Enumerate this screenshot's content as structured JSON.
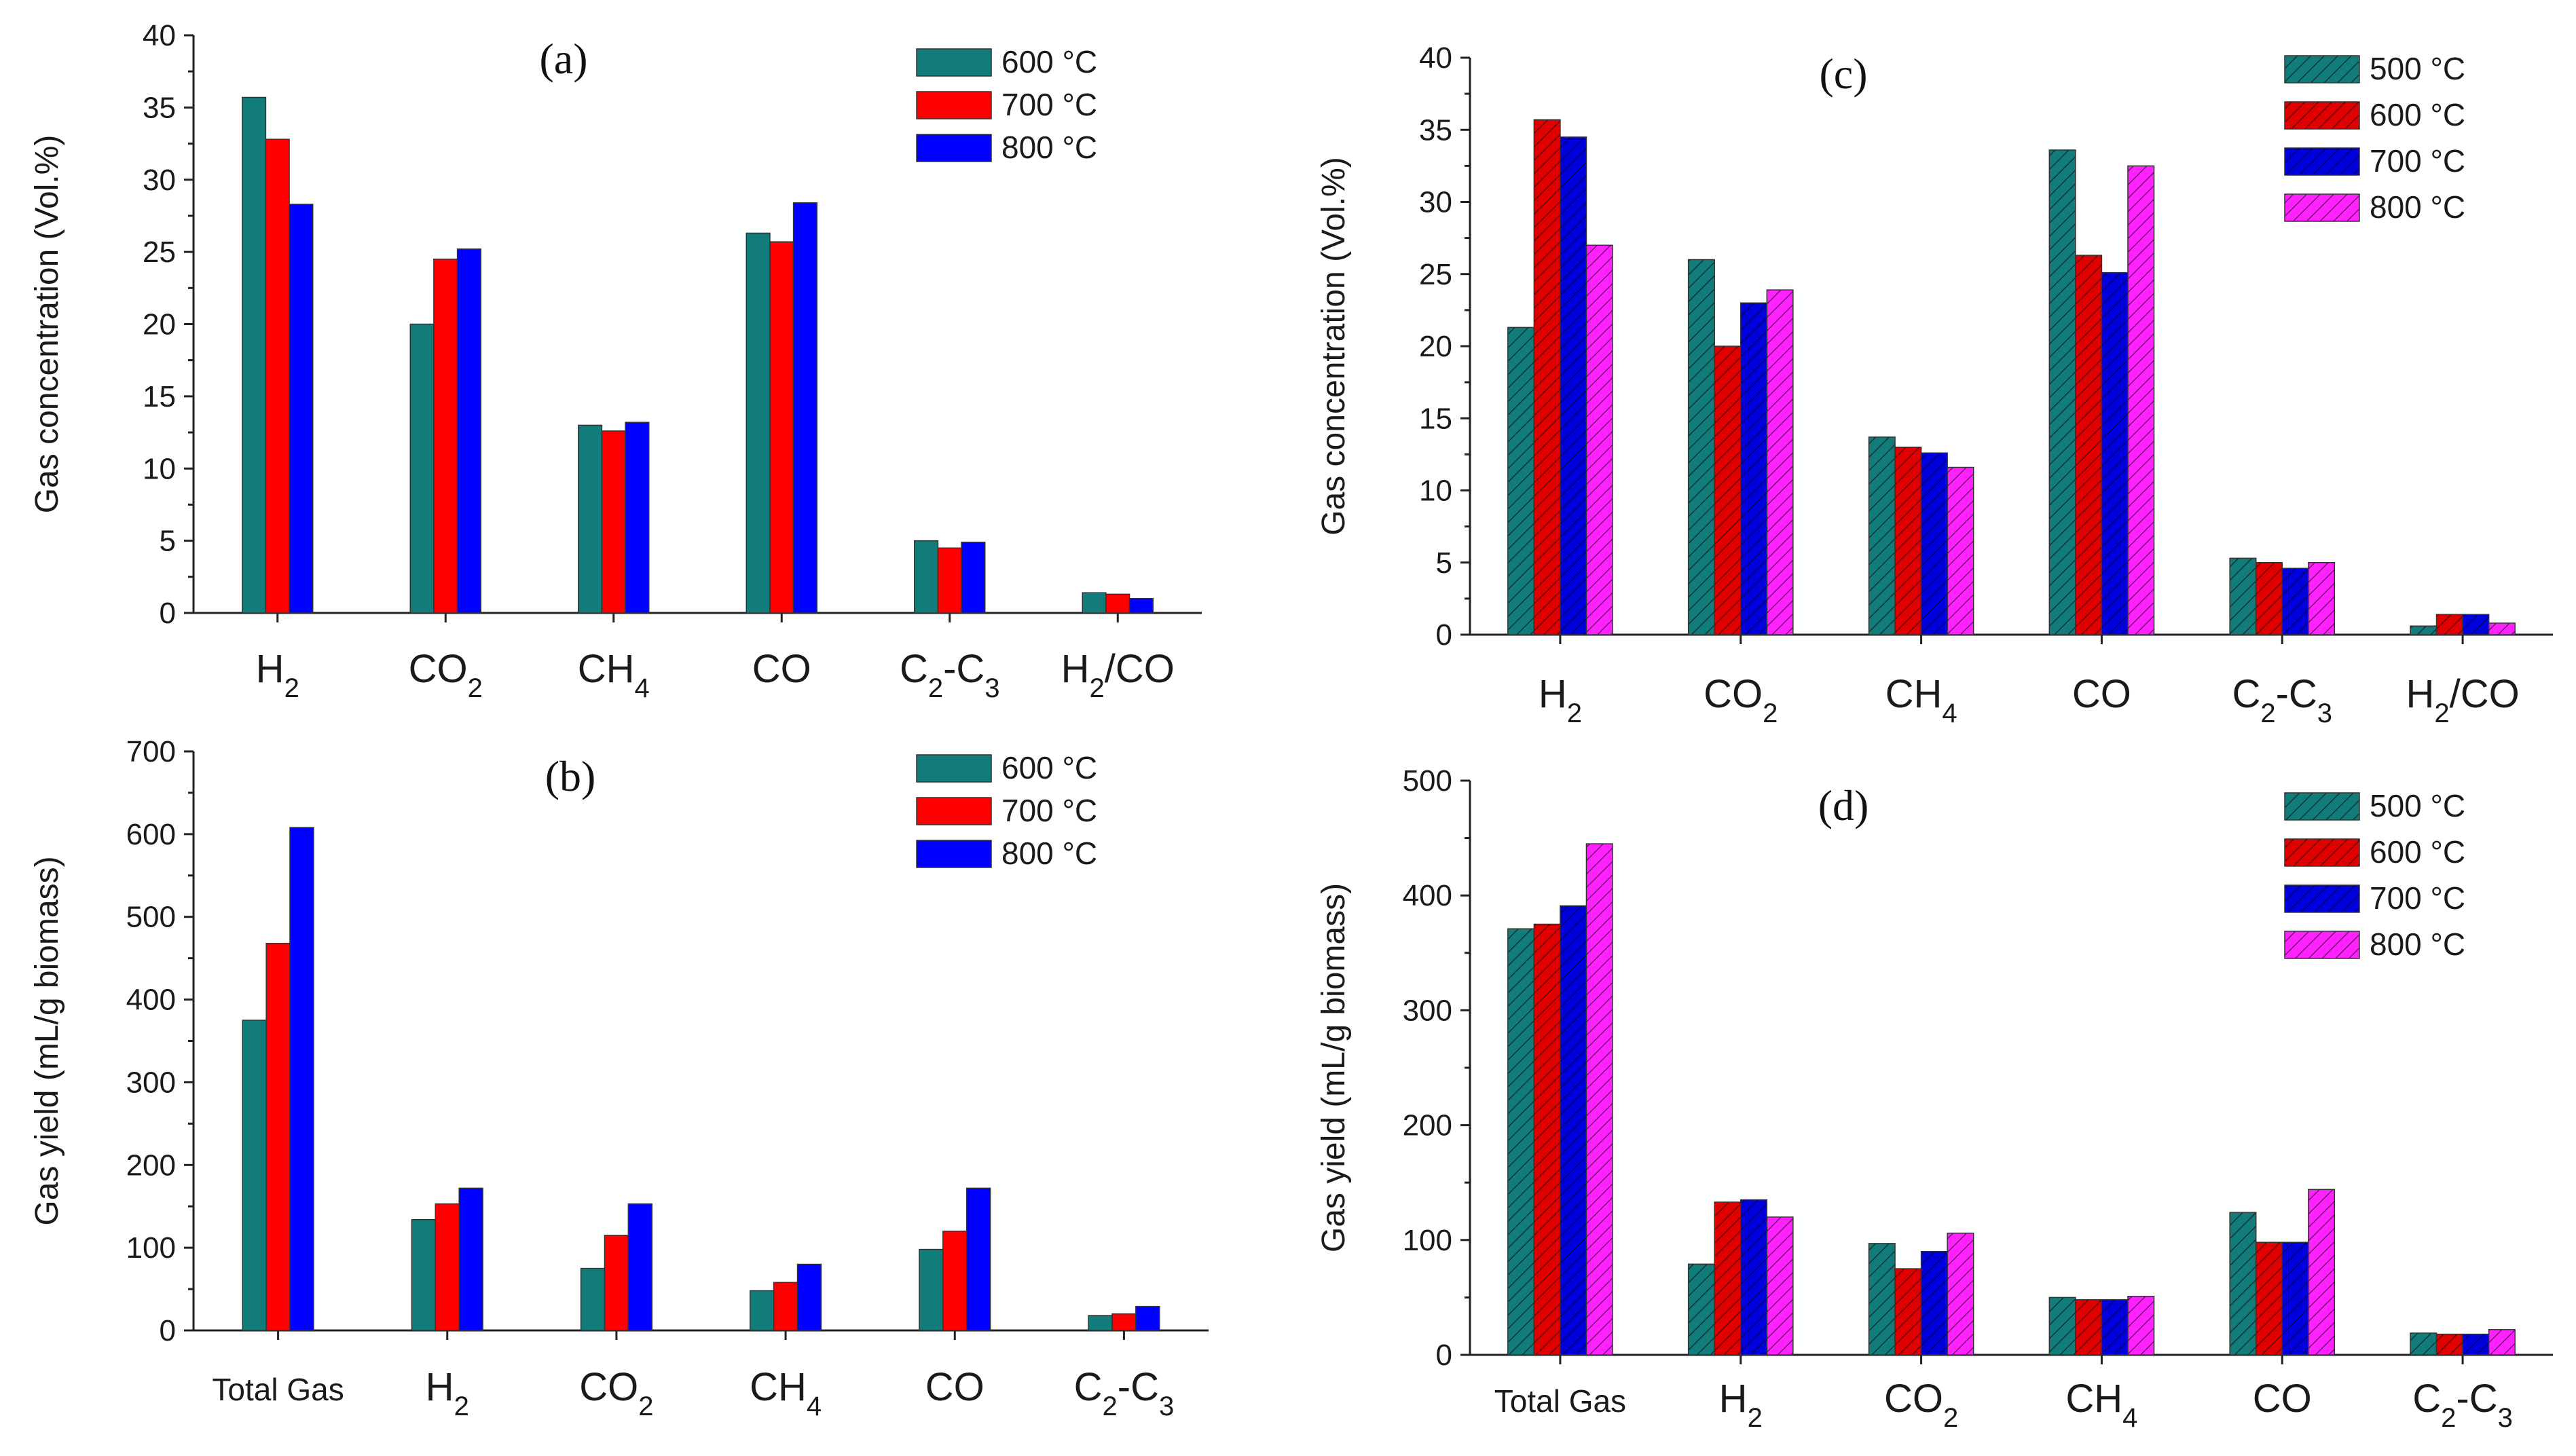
{
  "chart_data": [
    {
      "id": "a",
      "type": "bar",
      "title": "(a)",
      "ylabel": "Gas concentration (Vol.%)",
      "xlabel": "",
      "ylim": [
        0,
        40
      ],
      "yticks": [
        0,
        5,
        10,
        15,
        20,
        25,
        30,
        35,
        40
      ],
      "categories": [
        {
          "base": "H",
          "sub": "2",
          "tail": ""
        },
        {
          "base": "CO",
          "sub": "2",
          "tail": ""
        },
        {
          "base": "CH",
          "sub": "4",
          "tail": ""
        },
        {
          "base": "CO",
          "sub": "",
          "tail": ""
        },
        {
          "base": "C",
          "sub": "2",
          "mid": "-C",
          "sub2": "3"
        },
        {
          "base": "H",
          "sub": "2",
          "tail": "/CO"
        }
      ],
      "legend_position": "top-right",
      "series": [
        {
          "name": "600 °C",
          "color": "#127c7a",
          "hatched": false,
          "values": [
            35.7,
            20.0,
            13.0,
            26.3,
            5.0,
            1.4
          ]
        },
        {
          "name": "700 °C",
          "color": "#ff0000",
          "hatched": false,
          "values": [
            32.8,
            24.5,
            12.6,
            25.7,
            4.5,
            1.3
          ]
        },
        {
          "name": "800 °C",
          "color": "#0000ff",
          "hatched": false,
          "values": [
            28.3,
            25.2,
            13.2,
            28.4,
            4.9,
            1.0
          ]
        }
      ]
    },
    {
      "id": "b",
      "type": "bar",
      "title": "(b)",
      "ylabel": "Gas yield (mL/g biomass)",
      "xlabel": "",
      "ylim": [
        0,
        700
      ],
      "yticks": [
        0,
        100,
        200,
        300,
        400,
        500,
        600,
        700
      ],
      "categories": [
        {
          "base": "Total Gas",
          "sub": "",
          "tail": "",
          "small": true
        },
        {
          "base": "H",
          "sub": "2",
          "tail": ""
        },
        {
          "base": "CO",
          "sub": "2",
          "tail": ""
        },
        {
          "base": "CH",
          "sub": "4",
          "tail": ""
        },
        {
          "base": "CO",
          "sub": "",
          "tail": ""
        },
        {
          "base": "C",
          "sub": "2",
          "mid": "-C",
          "sub2": "3"
        }
      ],
      "legend_position": "top-right",
      "series": [
        {
          "name": "600 °C",
          "color": "#127c7a",
          "hatched": false,
          "values": [
            375,
            134,
            75,
            48,
            98,
            18
          ]
        },
        {
          "name": "700 °C",
          "color": "#ff0000",
          "hatched": false,
          "values": [
            468,
            153,
            115,
            58,
            120,
            20
          ]
        },
        {
          "name": "800 °C",
          "color": "#0000ff",
          "hatched": false,
          "values": [
            608,
            172,
            153,
            80,
            172,
            29
          ]
        }
      ]
    },
    {
      "id": "c",
      "type": "bar",
      "title": "(c)",
      "ylabel": "Gas concentration (Vol.%)",
      "xlabel": "",
      "ylim": [
        0,
        40
      ],
      "yticks": [
        0,
        5,
        10,
        15,
        20,
        25,
        30,
        35,
        40
      ],
      "categories": [
        {
          "base": "H",
          "sub": "2",
          "tail": ""
        },
        {
          "base": "CO",
          "sub": "2",
          "tail": ""
        },
        {
          "base": "CH",
          "sub": "4",
          "tail": ""
        },
        {
          "base": "CO",
          "sub": "",
          "tail": ""
        },
        {
          "base": "C",
          "sub": "2",
          "mid": "-C",
          "sub2": "3"
        },
        {
          "base": "H",
          "sub": "2",
          "tail": "/CO"
        }
      ],
      "legend_position": "top-right",
      "series": [
        {
          "name": "500 °C",
          "color": "#127c7a",
          "hatched": true,
          "values": [
            21.3,
            26.0,
            13.7,
            33.6,
            5.3,
            0.6
          ]
        },
        {
          "name": "600 °C",
          "color": "#e00000",
          "hatched": true,
          "values": [
            35.7,
            20.0,
            13.0,
            26.3,
            5.0,
            1.4
          ]
        },
        {
          "name": "700 °C",
          "color": "#0000dd",
          "hatched": true,
          "values": [
            34.5,
            23.0,
            12.6,
            25.1,
            4.6,
            1.4
          ]
        },
        {
          "name": "800 °C",
          "color": "#ff22ff",
          "hatched": true,
          "values": [
            27.0,
            23.9,
            11.6,
            32.5,
            5.0,
            0.8
          ]
        }
      ]
    },
    {
      "id": "d",
      "type": "bar",
      "title": "(d)",
      "ylabel": "Gas yield (mL/g biomass)",
      "xlabel": "",
      "ylim": [
        0,
        500
      ],
      "yticks": [
        0,
        100,
        200,
        300,
        400,
        500
      ],
      "categories": [
        {
          "base": "Total Gas",
          "sub": "",
          "tail": "",
          "small": true
        },
        {
          "base": "H",
          "sub": "2",
          "tail": ""
        },
        {
          "base": "CO",
          "sub": "2",
          "tail": ""
        },
        {
          "base": "CH",
          "sub": "4",
          "tail": ""
        },
        {
          "base": "CO",
          "sub": "",
          "tail": ""
        },
        {
          "base": "C",
          "sub": "2",
          "mid": "-C",
          "sub2": "3"
        }
      ],
      "legend_position": "top-right",
      "series": [
        {
          "name": "500 °C",
          "color": "#127c7a",
          "hatched": true,
          "values": [
            371,
            79,
            97,
            50,
            124,
            19
          ]
        },
        {
          "name": "600 °C",
          "color": "#e00000",
          "hatched": true,
          "values": [
            375,
            133,
            75,
            48,
            98,
            18
          ]
        },
        {
          "name": "700 °C",
          "color": "#0000dd",
          "hatched": true,
          "values": [
            391,
            135,
            90,
            48,
            98,
            18
          ]
        },
        {
          "name": "800 °C",
          "color": "#ff22ff",
          "hatched": true,
          "values": [
            445,
            120,
            106,
            51,
            144,
            22
          ]
        }
      ]
    }
  ]
}
